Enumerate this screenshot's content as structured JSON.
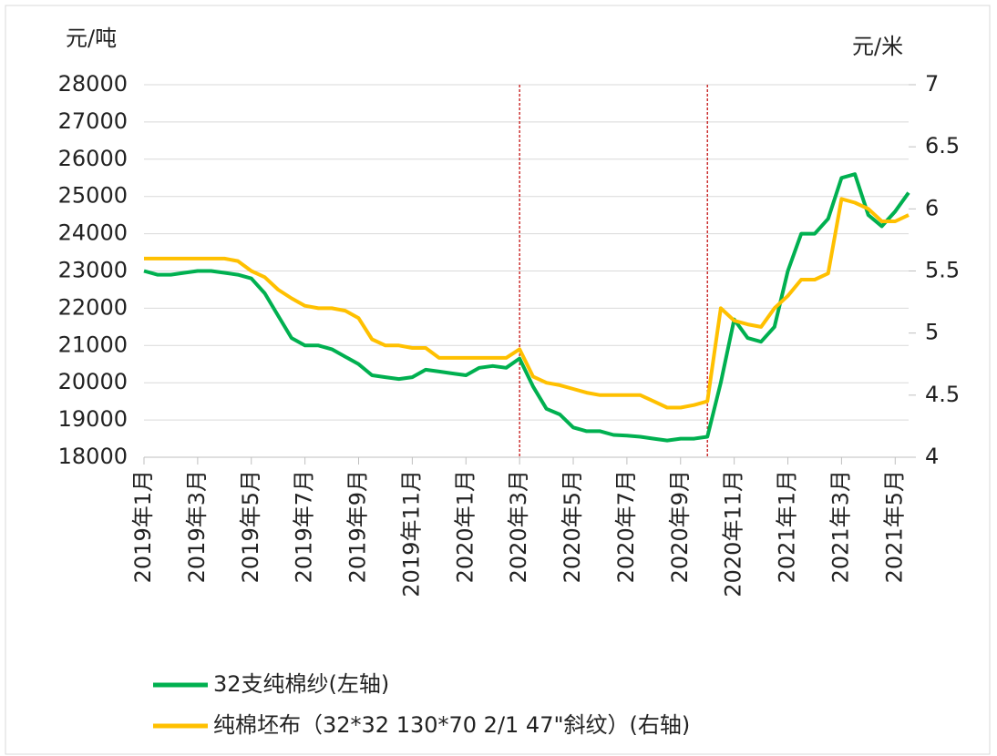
{
  "chart_data": {
    "type": "line",
    "y_label": "元/吨",
    "y2_label": "元/米",
    "categories": [
      "2019年1月",
      null,
      null,
      null,
      "2019年3月",
      null,
      null,
      null,
      "2019年5月",
      null,
      null,
      null,
      "2019年7月",
      null,
      null,
      null,
      "2019年9月",
      null,
      null,
      null,
      "2019年11月",
      null,
      null,
      null,
      "2020年1月",
      null,
      null,
      null,
      "2020年3月",
      null,
      null,
      null,
      "2020年5月",
      null,
      null,
      null,
      "2020年7月",
      null,
      null,
      null,
      "2020年9月",
      null,
      null,
      null,
      "2020年11月",
      null,
      null,
      null,
      "2021年1月",
      null,
      null,
      null,
      "2021年3月",
      null,
      null,
      null,
      "2021年5月",
      null
    ],
    "series": [
      {
        "name": "32支纯棉纱(左轴)",
        "color": "#00b050",
        "values": [
          23000,
          22900,
          22900,
          22950,
          23000,
          23000,
          22950,
          22900,
          22800,
          22400,
          21800,
          21200,
          21000,
          21000,
          20900,
          20700,
          20500,
          20200,
          20150,
          20100,
          20150,
          20350,
          20300,
          20250,
          20200,
          20400,
          20450,
          20400,
          20650,
          19900,
          19300,
          19150,
          18800,
          18700,
          18700,
          18600,
          18580,
          18550,
          18500,
          18450,
          18500,
          18500,
          18550,
          20000,
          21700,
          21200,
          21100,
          21500,
          23000,
          24000,
          24000,
          24400,
          25500,
          25600,
          24500,
          24200,
          24600,
          25100
        ]
      },
      {
        "name": "纯棉坯布（32*32 130*70 2/1 47\"斜纹）(右轴)",
        "color": "#ffc000",
        "axis": "y2",
        "values": [
          5.6,
          5.6,
          5.6,
          5.6,
          5.6,
          5.6,
          5.6,
          5.58,
          5.5,
          5.45,
          5.35,
          5.28,
          5.22,
          5.2,
          5.2,
          5.18,
          5.12,
          4.95,
          4.9,
          4.9,
          4.88,
          4.88,
          4.8,
          4.8,
          4.8,
          4.8,
          4.8,
          4.8,
          4.87,
          4.65,
          4.6,
          4.58,
          4.55,
          4.52,
          4.5,
          4.5,
          4.5,
          4.5,
          4.45,
          4.4,
          4.4,
          4.42,
          4.45,
          5.2,
          5.1,
          5.07,
          5.05,
          5.2,
          5.3,
          5.43,
          5.43,
          5.48,
          6.08,
          6.05,
          6.0,
          5.9,
          5.9,
          5.95
        ]
      }
    ],
    "ylim": [
      18000,
      28000
    ],
    "yticks": [
      18000,
      19000,
      20000,
      21000,
      22000,
      23000,
      24000,
      25000,
      26000,
      27000,
      28000
    ],
    "y2lim": [
      4,
      7
    ],
    "y2ticks": [
      4,
      4.5,
      5,
      5.5,
      6,
      6.5,
      7
    ],
    "vlines": [
      28,
      42
    ],
    "vline_color": "#c00000",
    "grid": true,
    "legend": "bottom"
  }
}
